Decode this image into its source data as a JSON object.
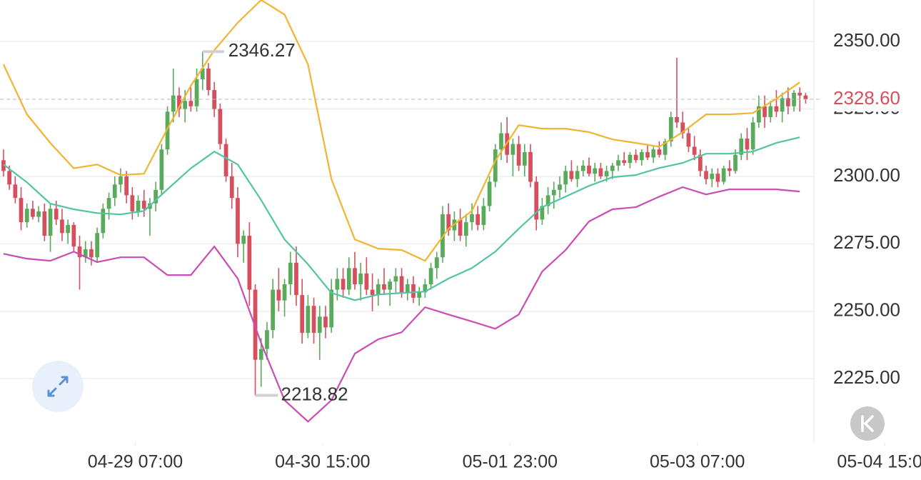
{
  "chart_data": {
    "type": "candlestick",
    "candles": [
      [
        2306,
        2310,
        2300,
        2302
      ],
      [
        2302,
        2304,
        2295,
        2297
      ],
      [
        2297,
        2300,
        2290,
        2292
      ],
      [
        2292,
        2296,
        2280,
        2283
      ],
      [
        2283,
        2290,
        2281,
        2288
      ],
      [
        2288,
        2291,
        2284,
        2285
      ],
      [
        2285,
        2289,
        2283,
        2287
      ],
      [
        2287,
        2290,
        2276,
        2278
      ],
      [
        2278,
        2290,
        2272,
        2288
      ],
      [
        2288,
        2291,
        2282,
        2284
      ],
      [
        2284,
        2288,
        2276,
        2279
      ],
      [
        2279,
        2284,
        2275,
        2282
      ],
      [
        2282,
        2283,
        2272,
        2274
      ],
      [
        2274,
        2278,
        2258,
        2270
      ],
      [
        2270,
        2276,
        2268,
        2273
      ],
      [
        2273,
        2276,
        2267,
        2270
      ],
      [
        2270,
        2281,
        2268,
        2279
      ],
      [
        2279,
        2290,
        2277,
        2288
      ],
      [
        2288,
        2294,
        2284,
        2292
      ],
      [
        2292,
        2300,
        2289,
        2297
      ],
      [
        2297,
        2303,
        2294,
        2300
      ],
      [
        2300,
        2302,
        2290,
        2293
      ],
      [
        2293,
        2296,
        2284,
        2287
      ],
      [
        2287,
        2293,
        2285,
        2291
      ],
      [
        2291,
        2295,
        2285,
        2288
      ],
      [
        2288,
        2292,
        2278,
        2290
      ],
      [
        2290,
        2298,
        2287,
        2295
      ],
      [
        2295,
        2312,
        2293,
        2310
      ],
      [
        2310,
        2326,
        2308,
        2324
      ],
      [
        2324,
        2340,
        2320,
        2330
      ],
      [
        2330,
        2333,
        2322,
        2325
      ],
      [
        2325,
        2332,
        2320,
        2328
      ],
      [
        2328,
        2333,
        2324,
        2326
      ],
      [
        2326,
        2340,
        2324,
        2336
      ],
      [
        2336,
        2346.27,
        2332,
        2340
      ],
      [
        2340,
        2342,
        2330,
        2332
      ],
      [
        2332,
        2335,
        2322,
        2325
      ],
      [
        2325,
        2327,
        2310,
        2312
      ],
      [
        2312,
        2314,
        2298,
        2300
      ],
      [
        2300,
        2305,
        2288,
        2292
      ],
      [
        2292,
        2296,
        2270,
        2275
      ],
      [
        2275,
        2280,
        2268,
        2278
      ],
      [
        2278,
        2283,
        2252,
        2258
      ],
      [
        2258,
        2260,
        2218.82,
        2232
      ],
      [
        2232,
        2240,
        2222,
        2236
      ],
      [
        2236,
        2246,
        2232,
        2243
      ],
      [
        2243,
        2262,
        2240,
        2258
      ],
      [
        2258,
        2266,
        2250,
        2254
      ],
      [
        2254,
        2262,
        2248,
        2260
      ],
      [
        2260,
        2272,
        2256,
        2268
      ],
      [
        2268,
        2274,
        2252,
        2256
      ],
      [
        2256,
        2262,
        2238,
        2242
      ],
      [
        2242,
        2256,
        2240,
        2252
      ],
      [
        2252,
        2255,
        2238,
        2242
      ],
      [
        2242,
        2252,
        2232,
        2248
      ],
      [
        2248,
        2252,
        2240,
        2244
      ],
      [
        2244,
        2262,
        2242,
        2258
      ],
      [
        2258,
        2266,
        2254,
        2262
      ],
      [
        2262,
        2266,
        2255,
        2258
      ],
      [
        2258,
        2270,
        2256,
        2266
      ],
      [
        2266,
        2272,
        2258,
        2260
      ],
      [
        2260,
        2268,
        2254,
        2264
      ],
      [
        2264,
        2270,
        2256,
        2258
      ],
      [
        2258,
        2264,
        2250,
        2256
      ],
      [
        2256,
        2262,
        2252,
        2260
      ],
      [
        2260,
        2266,
        2256,
        2258
      ],
      [
        2258,
        2262,
        2252,
        2261
      ],
      [
        2261,
        2266,
        2257,
        2263
      ],
      [
        2263,
        2266,
        2255,
        2257
      ],
      [
        2257,
        2262,
        2254,
        2260
      ],
      [
        2260,
        2263,
        2253,
        2255
      ],
      [
        2255,
        2259,
        2252,
        2257
      ],
      [
        2257,
        2262,
        2255,
        2260
      ],
      [
        2260,
        2268,
        2258,
        2266
      ],
      [
        2266,
        2272,
        2262,
        2270
      ],
      [
        2270,
        2289,
        2268,
        2286
      ],
      [
        2286,
        2290,
        2278,
        2280
      ],
      [
        2280,
        2287,
        2276,
        2284
      ],
      [
        2284,
        2288,
        2276,
        2278
      ],
      [
        2278,
        2286,
        2274,
        2283
      ],
      [
        2283,
        2290,
        2280,
        2286
      ],
      [
        2286,
        2289,
        2280,
        2282
      ],
      [
        2282,
        2292,
        2280,
        2289
      ],
      [
        2289,
        2300,
        2287,
        2298
      ],
      [
        2298,
        2312,
        2296,
        2310
      ],
      [
        2310,
        2320,
        2306,
        2316
      ],
      [
        2316,
        2322,
        2305,
        2308
      ],
      [
        2308,
        2314,
        2300,
        2312
      ],
      [
        2312,
        2315,
        2302,
        2304
      ],
      [
        2304,
        2312,
        2300,
        2309
      ],
      [
        2309,
        2312,
        2296,
        2298
      ],
      [
        2298,
        2300,
        2280,
        2284
      ],
      [
        2284,
        2292,
        2282,
        2289
      ],
      [
        2289,
        2296,
        2286,
        2293
      ],
      [
        2293,
        2298,
        2288,
        2295
      ],
      [
        2295,
        2300,
        2292,
        2297
      ],
      [
        2297,
        2304,
        2294,
        2302
      ],
      [
        2302,
        2306,
        2298,
        2299
      ],
      [
        2299,
        2304,
        2296,
        2302
      ],
      [
        2302,
        2306,
        2300,
        2304
      ],
      [
        2304,
        2307,
        2300,
        2301
      ],
      [
        2301,
        2305,
        2298,
        2303
      ],
      [
        2303,
        2305,
        2299,
        2300
      ],
      [
        2300,
        2304,
        2298,
        2302
      ],
      [
        2302,
        2305,
        2299,
        2304
      ],
      [
        2304,
        2308,
        2302,
        2306
      ],
      [
        2306,
        2309,
        2304,
        2305
      ],
      [
        2305,
        2309,
        2303,
        2308
      ],
      [
        2308,
        2310,
        2305,
        2306
      ],
      [
        2306,
        2310,
        2304,
        2309
      ],
      [
        2309,
        2312,
        2306,
        2307
      ],
      [
        2307,
        2311,
        2305,
        2310
      ],
      [
        2310,
        2313,
        2307,
        2308
      ],
      [
        2308,
        2314,
        2306,
        2313
      ],
      [
        2313,
        2324,
        2311,
        2322
      ],
      [
        2322,
        2344,
        2318,
        2320
      ],
      [
        2320,
        2324,
        2314,
        2316
      ],
      [
        2316,
        2318,
        2309,
        2311
      ],
      [
        2311,
        2315,
        2306,
        2308
      ],
      [
        2308,
        2310,
        2300,
        2302
      ],
      [
        2302,
        2304,
        2297,
        2299
      ],
      [
        2299,
        2303,
        2296,
        2301
      ],
      [
        2301,
        2303,
        2296,
        2298
      ],
      [
        2298,
        2304,
        2297,
        2303
      ],
      [
        2303,
        2306,
        2300,
        2302
      ],
      [
        2302,
        2310,
        2301,
        2308
      ],
      [
        2308,
        2316,
        2306,
        2314
      ],
      [
        2314,
        2318,
        2306,
        2310
      ],
      [
        2310,
        2322,
        2308,
        2320
      ],
      [
        2320,
        2330,
        2318,
        2326
      ],
      [
        2326,
        2330,
        2318,
        2322
      ],
      [
        2322,
        2328,
        2320,
        2326
      ],
      [
        2326,
        2332,
        2322,
        2324
      ],
      [
        2324,
        2331,
        2320,
        2329
      ],
      [
        2329,
        2333,
        2323,
        2326
      ],
      [
        2326,
        2332,
        2324,
        2331
      ],
      [
        2331,
        2333,
        2324,
        2330
      ],
      [
        2330,
        2331,
        2327,
        2328.6
      ]
    ],
    "up_color": "#5aaa5c",
    "down_color": "#d4505e",
    "overlay_x": [
      0,
      4,
      8,
      12,
      16,
      20,
      24,
      28,
      32,
      36,
      40,
      44,
      48,
      52,
      56,
      60,
      64,
      68,
      72,
      76,
      80,
      84,
      88,
      92,
      96,
      100,
      104,
      108,
      112,
      116,
      120,
      124,
      128,
      132,
      136
    ],
    "overlays": [
      {
        "color": "#f0b430",
        "values": [
          2341.5,
          2323,
          2312.4,
          2303,
          2304.4,
          2300.5,
          2301,
          2317.7,
          2333.6,
          2346.8,
          2357,
          2365.4,
          2360,
          2341.5,
          2299,
          2276.6,
          2273.2,
          2272.7,
          2268.7,
          2280.6,
          2287.2,
          2305.8,
          2319,
          2317.7,
          2317.7,
          2316.4,
          2313.7,
          2312.4,
          2311,
          2316.4,
          2323,
          2323,
          2323.5,
          2328.8,
          2334.9
        ]
      },
      {
        "color": "#52c4a3",
        "values": [
          2304.4,
          2297.8,
          2289.9,
          2287.8,
          2286.4,
          2285.9,
          2287.2,
          2295.2,
          2303,
          2309.2,
          2304.4,
          2291.2,
          2276.6,
          2267.4,
          2256.8,
          2254.1,
          2256.2,
          2256.8,
          2257.3,
          2262.1,
          2266,
          2272.1,
          2280.6,
          2288.6,
          2292.5,
          2296.5,
          2299.7,
          2300.5,
          2303.1,
          2305,
          2308.4,
          2308.4,
          2309.2,
          2312.4,
          2314.5
        ]
      },
      {
        "color": "#c94db4",
        "values": [
          2271.3,
          2269.5,
          2268.7,
          2272.1,
          2268.2,
          2270,
          2270,
          2263.4,
          2263.4,
          2274,
          2262.1,
          2238.2,
          2217,
          2209.1,
          2217,
          2234.3,
          2239.6,
          2242.2,
          2251.5,
          2248.8,
          2246.2,
          2243.5,
          2248.8,
          2264.7,
          2272.7,
          2283.3,
          2287.8,
          2288.6,
          2292.5,
          2296,
          2293.3,
          2295.2,
          2295.2,
          2295.2,
          2294.4
        ]
      }
    ],
    "xlim": [
      -0.6,
      156.7
    ],
    "xticks": [
      {
        "value": 22.5,
        "label": "04-29 07:00"
      },
      {
        "value": 54.5,
        "label": "04-30 15:00"
      },
      {
        "value": 86.5,
        "label": "05-01 23:00"
      },
      {
        "value": 118.5,
        "label": "05-03 07:00"
      },
      {
        "value": 150.5,
        "label": "05-04 15:00"
      }
    ],
    "ylim": [
      2201.2,
      2365.4
    ],
    "yticks": [
      {
        "value": 2225,
        "label": "2225.00"
      },
      {
        "value": 2250,
        "label": "2250.00"
      },
      {
        "value": 2275,
        "label": "2275.00"
      },
      {
        "value": 2300,
        "label": "2300.00"
      },
      {
        "value": 2325,
        "label": "2325.00"
      },
      {
        "value": 2350,
        "label": "2350.00"
      }
    ],
    "grid": true,
    "high_index": 34,
    "low_index": 43,
    "last_price_label": "2328.60",
    "last_price_color": "#d4505e"
  }
}
